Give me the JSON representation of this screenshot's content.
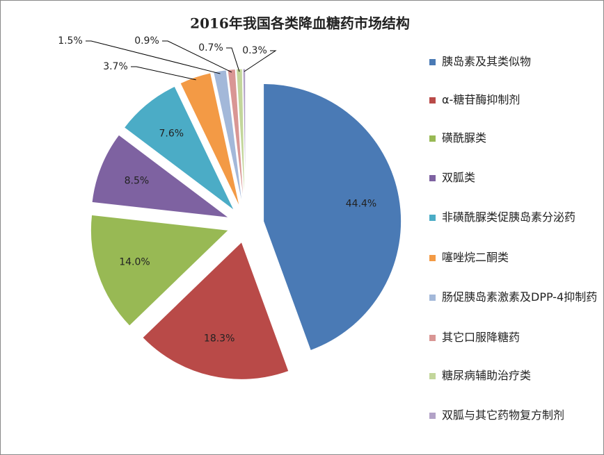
{
  "chart_data": {
    "type": "pie",
    "title": "2016年我国各类降血糖药市场结构",
    "categories": [
      "胰岛素及其类似物",
      "α-糖苷酶抑制剂",
      "磺酰脲类",
      "双胍类",
      "非磺酰脲类促胰岛素分泌药",
      "噻唑烷二酮类",
      "肠促胰岛素激素及DPP-4抑制药",
      "其它口服降糖药",
      "糖尿病辅助治疗类",
      "双胍与其它药物复方制剂"
    ],
    "values": [
      44.4,
      18.3,
      14.0,
      8.5,
      7.6,
      3.7,
      1.5,
      0.9,
      0.7,
      0.3
    ],
    "value_labels": [
      "44.4%",
      "18.3%",
      "14.0%",
      "8.5%",
      "7.6%",
      "3.7%",
      "1.5%",
      "0.9%",
      "0.7%",
      "0.3%"
    ],
    "colors": [
      "#4a7ab5",
      "#b94a48",
      "#98b954",
      "#7e62a1",
      "#4bacc6",
      "#f39a45",
      "#a3b8d9",
      "#d99694",
      "#c3d69b",
      "#b2a2c7"
    ],
    "legend": "right"
  }
}
